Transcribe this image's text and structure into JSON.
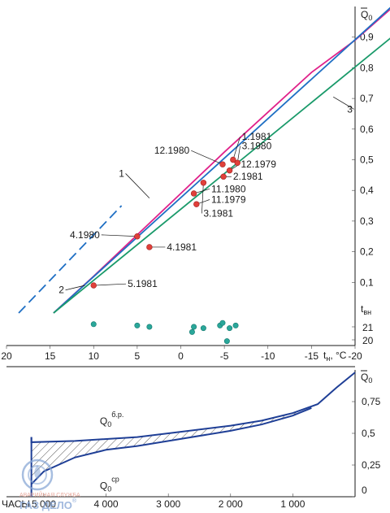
{
  "chart_data": [
    {
      "type": "line",
      "xlabel_var": "t",
      "xlabel_sub": "н",
      "xlabel_unit": "°C",
      "ylabel_var": "Q",
      "ylabel_sub": "0",
      "xlim": [
        20,
        -20
      ],
      "ylim": [
        0,
        1.0
      ],
      "x_ticks": [
        {
          "v": 20,
          "label": "20"
        },
        {
          "v": 15,
          "label": "15"
        },
        {
          "v": 10,
          "label": "10"
        },
        {
          "v": 5,
          "label": "5"
        },
        {
          "v": 0,
          "label": "0"
        },
        {
          "v": -5,
          "label": "-5"
        },
        {
          "v": -10,
          "label": "-10"
        },
        {
          "v": -15,
          "label": "-15"
        },
        {
          "v": -20,
          "label": "-20"
        }
      ],
      "y_ticks": [
        {
          "v": 0.1,
          "label": "0,1"
        },
        {
          "v": 0.2,
          "label": "0,2"
        },
        {
          "v": 0.3,
          "label": "0,3"
        },
        {
          "v": 0.4,
          "label": "0,4"
        },
        {
          "v": 0.5,
          "label": "0,5"
        },
        {
          "v": 0.6,
          "label": "0,6"
        },
        {
          "v": 0.7,
          "label": "0,7"
        },
        {
          "v": 0.8,
          "label": "0,8"
        },
        {
          "v": 0.9,
          "label": "0,9"
        }
      ],
      "tvn_label_var": "t",
      "tvn_label_sub": "вн",
      "tvn_ticks": [
        {
          "v": 21,
          "label": "21"
        },
        {
          "v": 20,
          "label": "20"
        }
      ],
      "series": [
        {
          "name": "1",
          "color": "#e0218a",
          "points": [
            [
              14.6,
              0.0
            ],
            [
              10,
              0.12
            ],
            [
              5,
              0.255
            ],
            [
              0,
              0.39
            ],
            [
              -5,
              0.525
            ],
            [
              -10,
              0.655
            ],
            [
              -15,
              0.785
            ],
            [
              -20,
              0.89
            ],
            [
              -24,
              0.99
            ]
          ]
        },
        {
          "name": "2",
          "color": "#1f6fc4",
          "points": [
            [
              14.6,
              0.0
            ],
            [
              -24.2,
              1.0
            ]
          ],
          "dashed_points": [
            [
              18.6,
              0.0
            ],
            [
              14.6,
              0.0
            ]
          ],
          "dashed_segment": [
            [
              18.6,
              0.0
            ],
            [
              6.8,
              0.35
            ]
          ]
        },
        {
          "name": "3",
          "color": "#1a9a6a",
          "points": [
            [
              14.6,
              0.0
            ],
            [
              -24.2,
              0.9
            ]
          ]
        }
      ],
      "series_labels": [
        {
          "text": "1",
          "x": 6.8,
          "y": 0.455,
          "tx": 3.6,
          "ty": 0.375
        },
        {
          "text": "2",
          "x": 13.7,
          "y": 0.075,
          "tx": 11.0,
          "ty": 0.09
        },
        {
          "text": "3",
          "x": -19.4,
          "y": 0.665,
          "tx": -17.5,
          "ty": 0.705
        }
      ],
      "points": [
        {
          "x": 10.0,
          "y": 0.09,
          "label": "5.1981"
        },
        {
          "x": 5.0,
          "y": 0.25,
          "label": "4.1980"
        },
        {
          "x": 3.6,
          "y": 0.215,
          "label": "4.1981"
        },
        {
          "x": -1.5,
          "y": 0.39,
          "label": "11.1980"
        },
        {
          "x": -1.8,
          "y": 0.355,
          "label": "11.1979"
        },
        {
          "x": -2.6,
          "y": 0.425,
          "label": "3.1981"
        },
        {
          "x": -4.9,
          "y": 0.445,
          "label": "2.1981"
        },
        {
          "x": -4.8,
          "y": 0.485,
          "label": "12.1980"
        },
        {
          "x": -5.6,
          "y": 0.465,
          "label": "12.1979"
        },
        {
          "x": -6.0,
          "y": 0.5,
          "label": "1.1981"
        },
        {
          "x": -6.5,
          "y": 0.49,
          "label": "3.1980"
        }
      ],
      "tvn_points": [
        [
          10.0,
          21.2
        ],
        [
          5.0,
          21.1
        ],
        [
          3.6,
          21.0
        ],
        [
          -1.5,
          21.0
        ],
        [
          -1.3,
          20.6
        ],
        [
          -2.6,
          20.9
        ],
        [
          -4.5,
          21.1
        ],
        [
          -4.8,
          21.3
        ],
        [
          -5.3,
          19.9
        ],
        [
          -5.6,
          20.9
        ],
        [
          -6.3,
          21.1
        ]
      ],
      "point_annotations": [
        {
          "label": "12.1980",
          "tx": -1.0,
          "ty": 0.53,
          "px": -4.8,
          "py": 0.485
        },
        {
          "label": "1.1981",
          "tx": -7.0,
          "ty": 0.575,
          "px": -6.0,
          "py": 0.5
        },
        {
          "label": "3.1980",
          "tx": -7.0,
          "ty": 0.545,
          "px": -6.5,
          "py": 0.49
        },
        {
          "label": "12.1979",
          "tx": -6.9,
          "ty": 0.485,
          "px": -5.6,
          "py": 0.465
        },
        {
          "label": "2.1981",
          "tx": -6.0,
          "ty": 0.445,
          "px": -4.9,
          "py": 0.445
        },
        {
          "label": "11.1980",
          "tx": -3.5,
          "ty": 0.405,
          "px": -1.5,
          "py": 0.39
        },
        {
          "label": "11.1979",
          "tx": -3.5,
          "ty": 0.37,
          "px": -1.8,
          "py": 0.355
        },
        {
          "label": "3.1981",
          "tx": -2.6,
          "ty": 0.325,
          "px": -2.6,
          "py": 0.425
        },
        {
          "label": "4.1980",
          "tx": 9.3,
          "ty": 0.255,
          "px": 5.0,
          "py": 0.25
        },
        {
          "label": "4.1981",
          "tx": 1.6,
          "ty": 0.215,
          "px": 3.6,
          "py": 0.215
        },
        {
          "label": "5.1981",
          "tx": 6.1,
          "ty": 0.095,
          "px": 10.0,
          "py": 0.09
        }
      ]
    },
    {
      "type": "area",
      "xlabel": "ЧАСЫ",
      "ylabel_var": "Q",
      "ylabel_sub": "0",
      "xlim": [
        5600,
        0
      ],
      "ylim": [
        0,
        1.0
      ],
      "x_ticks": [
        {
          "v": 5000,
          "label": "5 000"
        },
        {
          "v": 4000,
          "label": "4 000"
        },
        {
          "v": 3000,
          "label": "3 000"
        },
        {
          "v": 2000,
          "label": "2 000"
        },
        {
          "v": 1000,
          "label": "1 000"
        }
      ],
      "y_ticks": [
        {
          "v": 0,
          "label": "0"
        },
        {
          "v": 0.25,
          "label": "0,25"
        },
        {
          "v": 0.5,
          "label": "0,5"
        },
        {
          "v": 0.75,
          "label": "0,75"
        }
      ],
      "series": [
        {
          "name": "Q0 б.р.",
          "color": "#1f3f96",
          "points": [
            [
              5200,
              0.47
            ],
            [
              5200,
              0.43
            ],
            [
              4500,
              0.44
            ],
            [
              3500,
              0.47
            ],
            [
              3000,
              0.5
            ],
            [
              2000,
              0.56
            ],
            [
              1500,
              0.6
            ],
            [
              1000,
              0.66
            ],
            [
              600,
              0.73
            ],
            [
              300,
              0.86
            ],
            [
              0,
              0.98
            ]
          ]
        },
        {
          "name": "Q0 ср",
          "color": "#1f3f96",
          "points": [
            [
              5200,
              0.1
            ],
            [
              5000,
              0.2
            ],
            [
              4500,
              0.31
            ],
            [
              4000,
              0.37
            ],
            [
              3500,
              0.4
            ],
            [
              3000,
              0.44
            ],
            [
              2000,
              0.52
            ],
            [
              1500,
              0.57
            ],
            [
              1000,
              0.64
            ],
            [
              700,
              0.7
            ]
          ]
        }
      ],
      "curve_labels": [
        {
          "var": "Q",
          "sub": "0",
          "sup": "б.р.",
          "x": 4100,
          "y": 0.57
        },
        {
          "var": "Q",
          "sub": "0",
          "sup": "ср",
          "x": 4100,
          "y": 0.06
        }
      ]
    }
  ],
  "logo": {
    "line1": "АВАРИЙНАЯ СЛУЖБА",
    "line2": "ГАЗ ДЕЛО",
    "mark": "®"
  }
}
